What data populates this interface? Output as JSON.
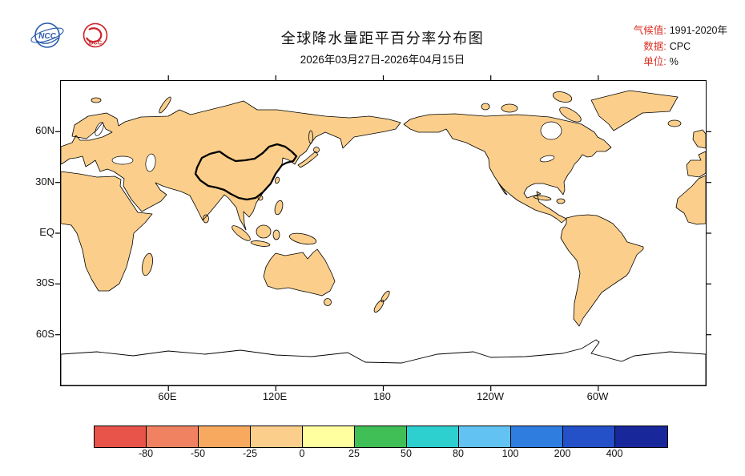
{
  "header": {
    "title": "全球降水量距平百分率分布图",
    "subtitle": "2026年03月27日-2026年04月15日",
    "meta": [
      {
        "label": "气候值:",
        "value": "1991-2020年"
      },
      {
        "label": "数据:",
        "value": "CPC"
      },
      {
        "label": "单位:",
        "value": "%"
      }
    ],
    "logos": [
      {
        "text": "NCC"
      },
      {
        "text": "BCC"
      }
    ]
  },
  "map": {
    "lat_labels": [
      "60N",
      "30N",
      "EQ",
      "30S",
      "60S"
    ],
    "lon_labels": [
      "60E",
      "120E",
      "180",
      "120W",
      "60W"
    ]
  },
  "colorbar": {
    "tick_labels": [
      "-80",
      "-50",
      "-25",
      "0",
      "25",
      "50",
      "80",
      "100",
      "200",
      "400"
    ],
    "colors": [
      "#e8534a",
      "#f08262",
      "#f6a95f",
      "#fbcf8b",
      "#ffff9f",
      "#3fbf55",
      "#2ecfcf",
      "#62c3f2",
      "#2f7ddf",
      "#2450c8",
      "#18289b"
    ]
  }
}
